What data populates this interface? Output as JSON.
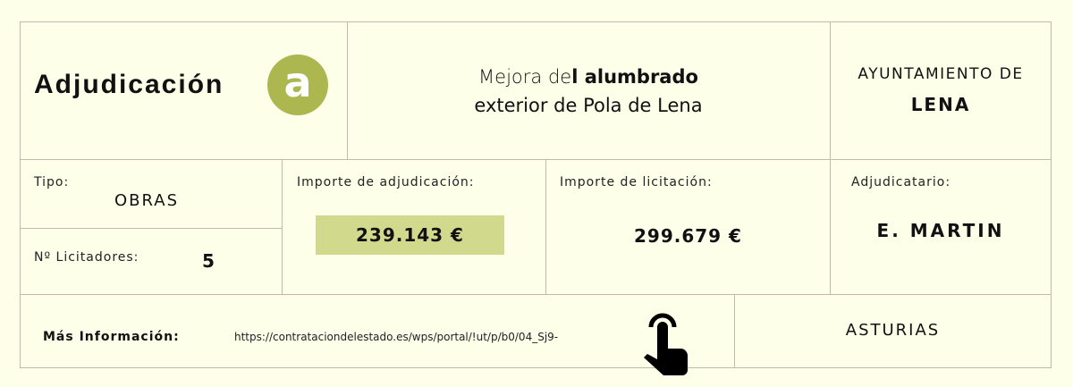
{
  "header": {
    "title": "Adjudicación",
    "badge": "a",
    "badge_color": "#adb74f",
    "project_line1_light": "Mejora de",
    "project_line1_bold": "l alumbrado",
    "project_line2": "exterior de Pola de Lena",
    "entity_line1": "AYUNTAMIENTO DE",
    "entity_line2": "LENA"
  },
  "details": {
    "tipo_label": "Tipo:",
    "tipo_value": "OBRAS",
    "licitadores_label": "Nº Licitadores:",
    "licitadores_value": "5",
    "adjudicacion_label": "Importe de adjudicación:",
    "adjudicacion_value": "239.143 €",
    "highlight_color": "#d1d98c",
    "licitacion_label": "Importe de licitación:",
    "licitacion_value": "299.679 €",
    "adjudicatario_label": "Adjudicatario:",
    "adjudicatario_value": "E. MARTIN"
  },
  "footer": {
    "info_label": "Más Información:",
    "url": "https://contrataciondelestado.es/wps/portal/!ut/p/b0/04_Sj9-",
    "icon": "hand-pointer-icon",
    "region": "ASTURIAS"
  }
}
